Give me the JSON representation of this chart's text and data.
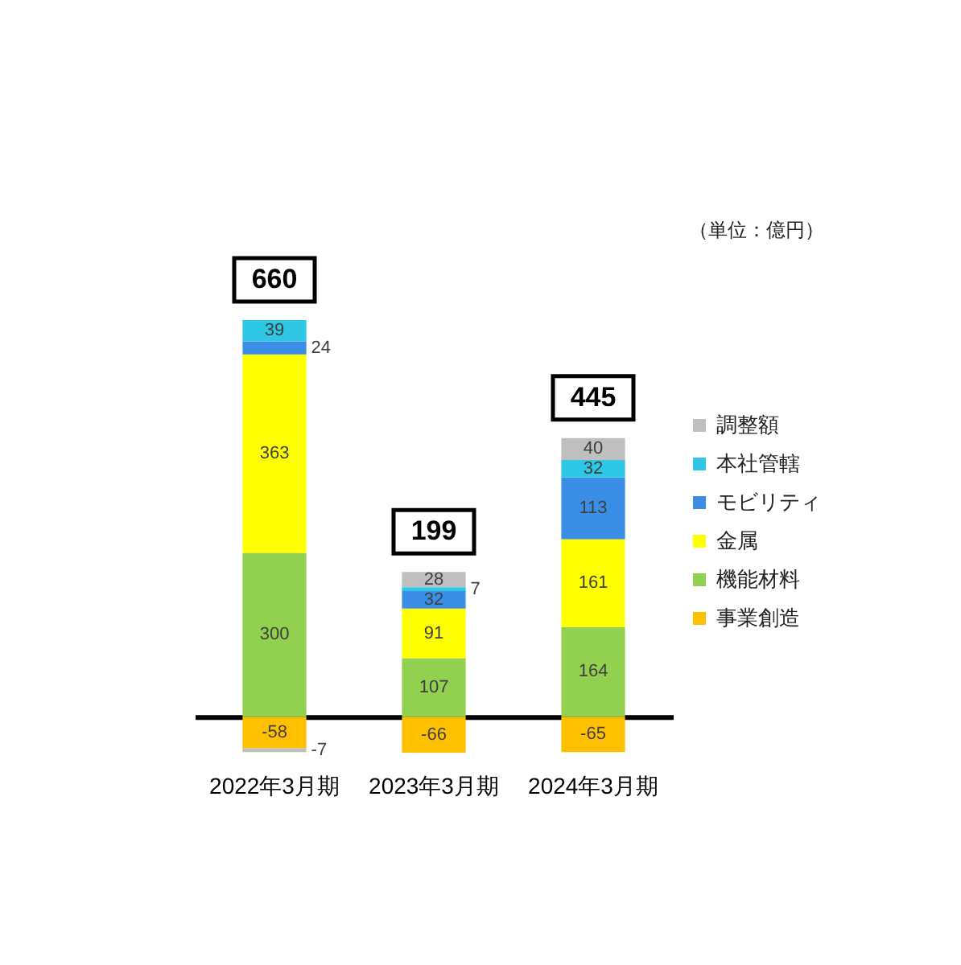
{
  "chart_data": {
    "type": "bar",
    "stacked": true,
    "categories": [
      "2022年3月期",
      "2023年3月期",
      "2024年3月期"
    ],
    "series": [
      {
        "name": "事業創造",
        "color": "#ffc000",
        "values": [
          -58,
          -66,
          -65
        ]
      },
      {
        "name": "機能材料",
        "color": "#92d050",
        "values": [
          300,
          107,
          164
        ]
      },
      {
        "name": "金属",
        "color": "#ffff00",
        "values": [
          363,
          91,
          161
        ]
      },
      {
        "name": "モビリティ",
        "color": "#3a8ee6",
        "values": [
          24,
          32,
          113
        ]
      },
      {
        "name": "本社管轄",
        "color": "#2ec8e6",
        "values": [
          39,
          7,
          32
        ]
      },
      {
        "name": "調整額",
        "color": "#bfbfbf",
        "values": [
          -7,
          28,
          40
        ]
      }
    ],
    "ylim": [
      -66,
      726
    ],
    "data_labels": true,
    "totals": [
      "660",
      "199",
      "445"
    ],
    "legend": "right",
    "tick_labels": "x",
    "annotations": [
      "（単位：億円）"
    ]
  }
}
